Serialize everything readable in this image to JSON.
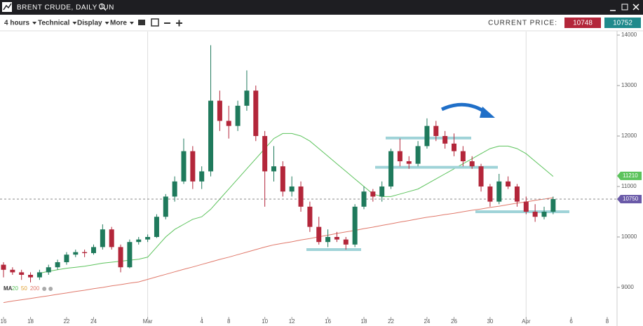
{
  "toolbar": {
    "title": "BRENT CRUDE, DAILY JUN",
    "menus": [
      "4 hours",
      "Technical",
      "Display",
      "More"
    ],
    "current_price_label": "CURRENT PRICE:",
    "bid": 10748,
    "ask": 10752
  },
  "chart_data": {
    "type": "candlestick",
    "categories": [
      "16",
      null,
      null,
      "18",
      null,
      null,
      null,
      "22",
      null,
      null,
      "24",
      null,
      null,
      null,
      null,
      null,
      "Mar",
      null,
      null,
      null,
      null,
      null,
      "4",
      null,
      null,
      "8",
      null,
      null,
      null,
      "10",
      null,
      null,
      "12",
      null,
      null,
      null,
      "16",
      null,
      null,
      null,
      "18",
      null,
      null,
      "22",
      null,
      null,
      null,
      "24",
      null,
      null,
      "26",
      null,
      null,
      null,
      "30",
      null,
      null,
      null,
      "Apr",
      null,
      null,
      null,
      null,
      "6",
      null,
      null,
      null,
      "8"
    ],
    "open": [
      9450,
      9350,
      9300,
      9250,
      9200,
      9300,
      9400,
      9500,
      9650,
      9700,
      9680,
      9800,
      10150,
      9800,
      9400,
      9900,
      9950,
      10000,
      10400,
      10800,
      11100,
      11700,
      11100,
      11300,
      12700,
      12300,
      12200,
      12600,
      12900,
      12000,
      11300,
      11400,
      10900,
      11000,
      10600,
      10200,
      9900,
      10000,
      9950,
      9850,
      10600,
      10900,
      10800,
      11000,
      11700,
      11500,
      11450,
      11800,
      12200,
      12000,
      11850,
      11700,
      11500,
      11400,
      11000,
      10700,
      11100,
      11000,
      10700,
      10500,
      10400,
      10500,
      null,
      null,
      null,
      null,
      null,
      null
    ],
    "high": [
      9500,
      9400,
      9350,
      9300,
      9350,
      9450,
      9550,
      9700,
      9750,
      9750,
      9850,
      10250,
      10200,
      9850,
      9950,
      10000,
      10050,
      10450,
      10850,
      11200,
      11950,
      11800,
      11400,
      13800,
      12900,
      12600,
      12700,
      13300,
      13000,
      12100,
      11800,
      11500,
      11200,
      11100,
      10700,
      10400,
      10150,
      10100,
      10000,
      10650,
      11000,
      10950,
      11100,
      11750,
      11950,
      11600,
      11900,
      12350,
      12300,
      12100,
      12050,
      11800,
      11600,
      11450,
      11050,
      11250,
      11200,
      11050,
      10800,
      10650,
      10600,
      10800,
      null,
      null,
      null,
      null,
      null,
      null
    ],
    "low": [
      9200,
      9250,
      9150,
      9100,
      9150,
      9250,
      9350,
      9450,
      9600,
      9600,
      9650,
      9750,
      9750,
      9300,
      9380,
      9850,
      9900,
      9980,
      10350,
      10700,
      11050,
      10950,
      10950,
      11200,
      12100,
      11950,
      12100,
      12500,
      11900,
      10600,
      11100,
      10800,
      10800,
      10500,
      10100,
      9850,
      9800,
      9900,
      9750,
      9800,
      10550,
      10700,
      10700,
      10950,
      11400,
      11350,
      11400,
      11750,
      11900,
      11750,
      11600,
      11400,
      11350,
      10900,
      10600,
      10650,
      10950,
      10600,
      10450,
      10300,
      10350,
      10450,
      null,
      null,
      null,
      null,
      null,
      null
    ],
    "close": [
      9350,
      9300,
      9250,
      9200,
      9300,
      9400,
      9500,
      9650,
      9700,
      9680,
      9800,
      10150,
      9800,
      9400,
      9900,
      9950,
      10000,
      10400,
      10800,
      11100,
      11700,
      11100,
      11300,
      12700,
      12300,
      12200,
      12600,
      12900,
      12000,
      11300,
      11400,
      10900,
      11000,
      10600,
      10200,
      9900,
      10000,
      9950,
      9850,
      10600,
      10900,
      10800,
      11000,
      11700,
      11500,
      11450,
      11800,
      12200,
      12000,
      11850,
      11700,
      11500,
      11400,
      11000,
      10700,
      11100,
      11000,
      10700,
      10500,
      10400,
      10500,
      10750,
      null,
      null,
      null,
      null,
      null,
      null
    ],
    "up_color": "#1f7a5c",
    "down_color": "#b3263a",
    "ma_label": "MA",
    "ma_series": [
      {
        "name": "20",
        "color": "#5cc35c",
        "values": [
          null,
          null,
          null,
          null,
          9280,
          9320,
          9350,
          9380,
          9400,
          9420,
          9450,
          9480,
          9500,
          9520,
          9540,
          9560,
          9600,
          9800,
          10000,
          10150,
          10250,
          10350,
          10400,
          10550,
          10750,
          10950,
          11150,
          11350,
          11550,
          11750,
          11950,
          12050,
          12050,
          12000,
          11900,
          11750,
          11600,
          11450,
          11300,
          11150,
          11000,
          10850,
          10800,
          10800,
          10850,
          10900,
          10950,
          11050,
          11150,
          11250,
          11350,
          11450,
          11550,
          11650,
          11750,
          11800,
          11800,
          11750,
          11650,
          11500,
          11350,
          11200,
          null,
          null,
          null,
          null,
          null,
          null
        ]
      },
      {
        "name": "50",
        "color": "#e0a030"
      },
      {
        "name": "200",
        "color": "#e0786a",
        "values": [
          8700,
          8730,
          8755,
          8780,
          8810,
          8835,
          8865,
          8890,
          8920,
          8945,
          8975,
          9000,
          9030,
          9055,
          9085,
          9110,
          9160,
          9210,
          9260,
          9310,
          9360,
          9405,
          9455,
          9505,
          9555,
          9600,
          9650,
          9700,
          9750,
          9800,
          9845,
          9875,
          9905,
          9940,
          9970,
          10005,
          10035,
          10070,
          10100,
          10130,
          10165,
          10195,
          10230,
          10260,
          10295,
          10325,
          10360,
          10390,
          10415,
          10445,
          10470,
          10500,
          10530,
          10555,
          10585,
          10610,
          10640,
          10670,
          10695,
          10725,
          10750,
          10780,
          null,
          null,
          null,
          null,
          null,
          null
        ]
      }
    ],
    "levels": [
      9750,
      11960,
      11380,
      10500
    ],
    "level_color": "#9fd3d8",
    "current_price": 10750,
    "price_tags": [
      {
        "value": 11210,
        "color": "#5cc35c"
      },
      {
        "value": 10750,
        "color": "#6a5aa8"
      }
    ],
    "ylim": [
      8375,
      14070
    ],
    "yticks": [
      9000,
      10000,
      11000,
      12000,
      13000,
      14000
    ]
  }
}
